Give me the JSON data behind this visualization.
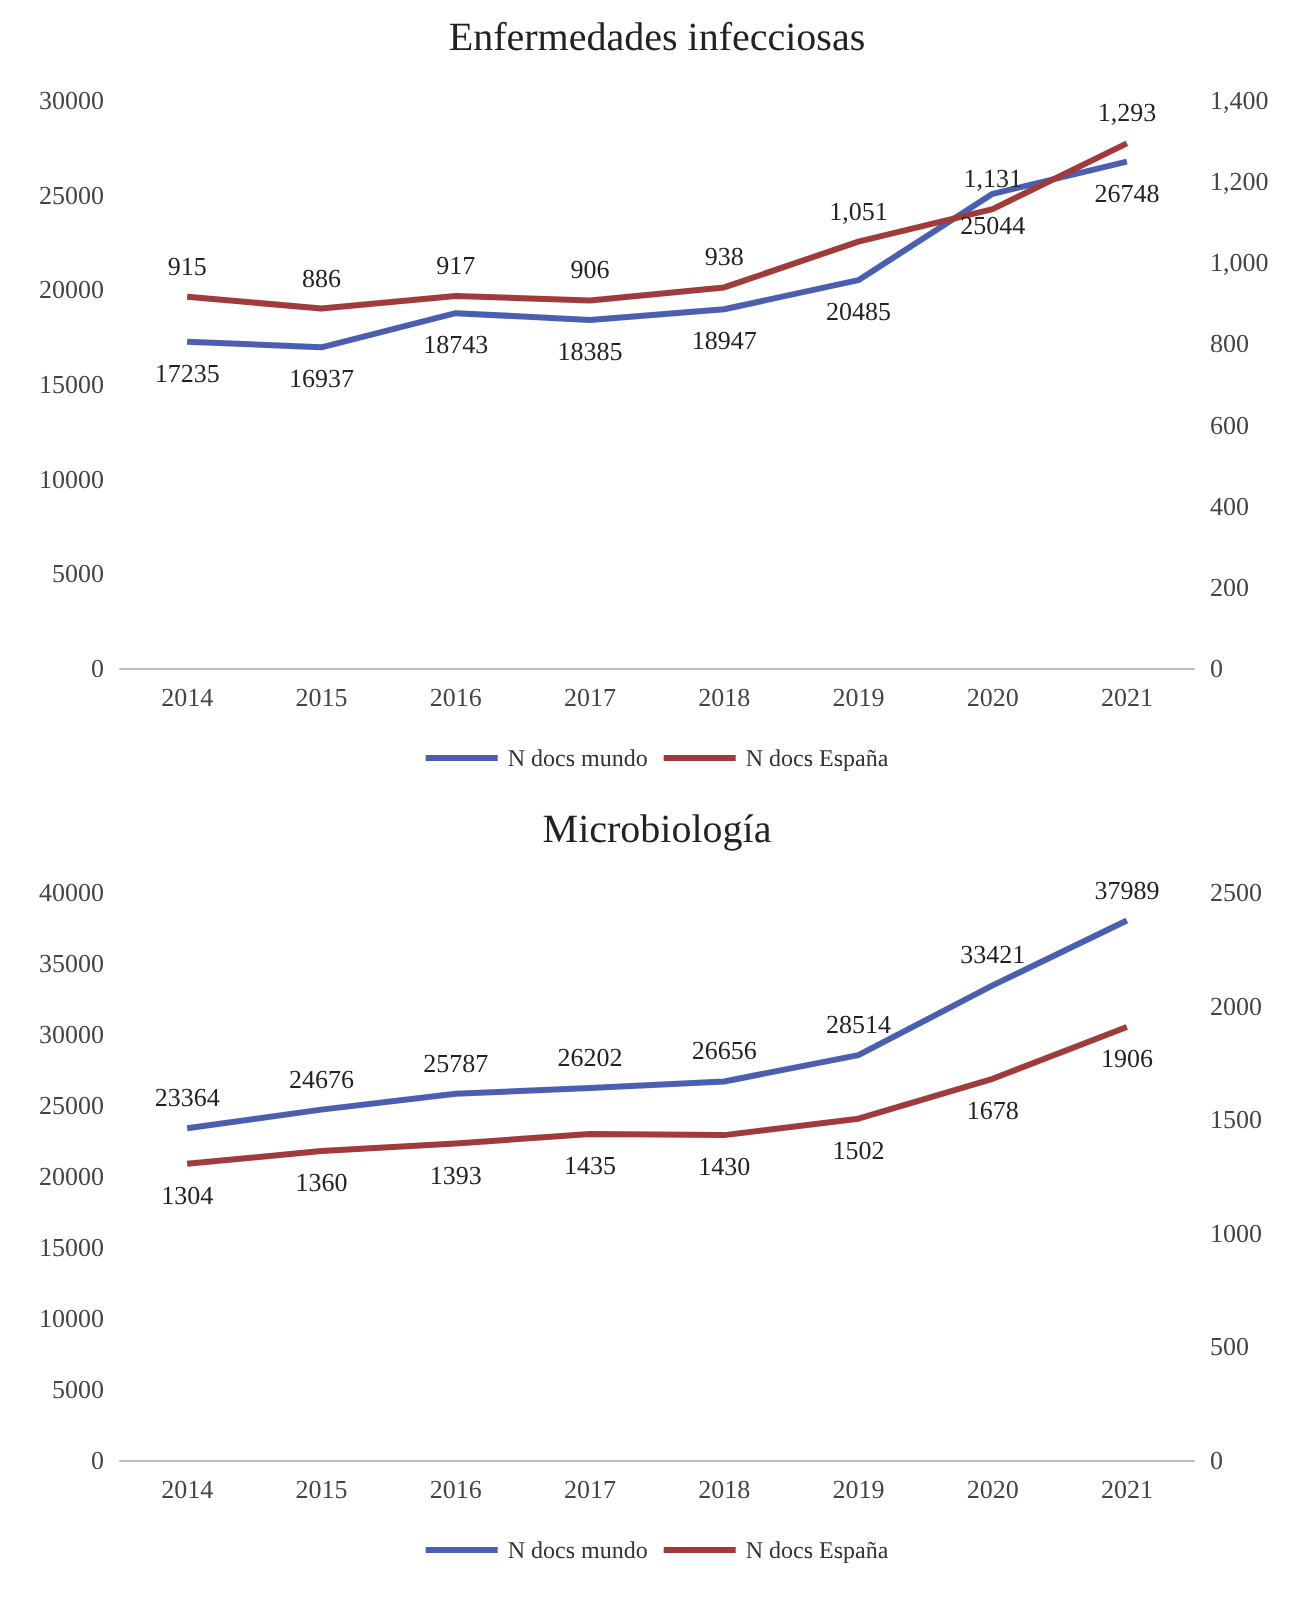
{
  "chart_data": [
    {
      "type": "line",
      "title": "Enfermedades infecciosas",
      "categories": [
        "2014",
        "2015",
        "2016",
        "2017",
        "2018",
        "2019",
        "2020",
        "2021"
      ],
      "series": [
        {
          "name": "N docs mundo",
          "color": "#4a5fb0",
          "values": [
            17235,
            16937,
            18743,
            18385,
            18947,
            20485,
            25044,
            26748
          ],
          "value_labels": [
            "17235",
            "16937",
            "18743",
            "18385",
            "18947",
            "20485",
            "25044",
            "26748"
          ]
        },
        {
          "name": "N docs España",
          "color": "#a13a3a",
          "axis": "y2",
          "values": [
            915,
            886,
            917,
            906,
            938,
            1051,
            1131,
            1293
          ],
          "value_labels": [
            "915",
            "886",
            "917",
            "906",
            "938",
            "1,051",
            "1,131",
            "1,293"
          ]
        }
      ],
      "ylim": [
        0,
        30000
      ],
      "yticks": [
        0,
        5000,
        10000,
        15000,
        20000,
        25000,
        30000
      ],
      "y2lim": [
        0,
        1400
      ],
      "y2ticks": [
        0,
        {
          "value": 200,
          "label": "200"
        },
        {
          "value": 400,
          "label": "400"
        },
        {
          "value": 600,
          "label": "600"
        },
        {
          "value": 800,
          "label": "800"
        },
        {
          "value": 1000,
          "label": "1,000"
        },
        {
          "value": 1200,
          "label": "1,200"
        },
        {
          "value": 1400,
          "label": "1,400"
        }
      ],
      "grid": false,
      "legend": "bottom",
      "marker": "none"
    },
    {
      "type": "line",
      "title": "Microbiología",
      "categories": [
        "2014",
        "2015",
        "2016",
        "2017",
        "2018",
        "2019",
        "2020",
        "2021"
      ],
      "series": [
        {
          "name": "N docs mundo",
          "color": "#4a5fb0",
          "values": [
            23364,
            24676,
            25787,
            26202,
            26656,
            28514,
            33421,
            37989
          ],
          "value_labels": [
            "23364",
            "24676",
            "25787",
            "26202",
            "26656",
            "28514",
            "33421",
            "37989"
          ]
        },
        {
          "name": "N docs España",
          "color": "#a13a3a",
          "axis": "y2",
          "values": [
            1304,
            1360,
            1393,
            1435,
            1430,
            1502,
            1678,
            1906
          ],
          "value_labels": [
            "1304",
            "1360",
            "1393",
            "1435",
            "1430",
            "1502",
            "1678",
            "1906"
          ]
        }
      ],
      "ylim": [
        0,
        40000
      ],
      "yticks": [
        0,
        5000,
        10000,
        15000,
        20000,
        25000,
        30000,
        35000,
        40000
      ],
      "y2lim": [
        0,
        2500
      ],
      "y2ticks": [
        0,
        500,
        1000,
        1500,
        2000,
        2500
      ],
      "grid": false,
      "legend": "bottom",
      "marker": "none"
    }
  ]
}
